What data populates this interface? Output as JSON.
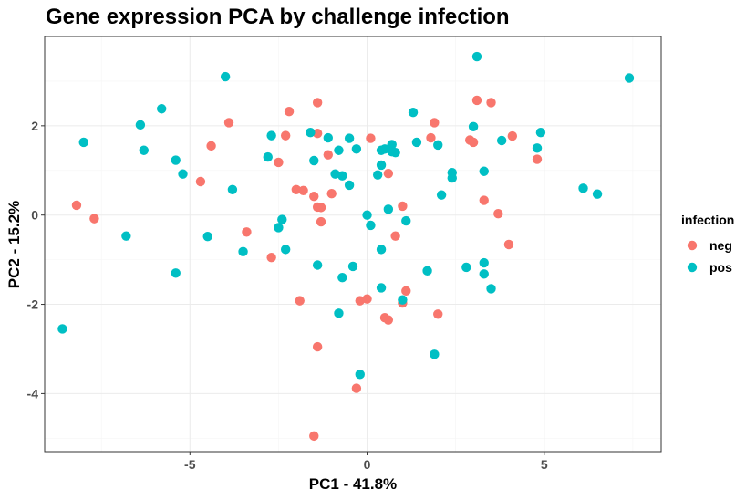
{
  "chart_data": {
    "type": "scatter",
    "title": "Gene expression PCA by challenge infection",
    "xlabel": "PC1 - 41.8%",
    "ylabel": "PC2 - 15.2%",
    "xlim": [
      -9.1,
      8.3
    ],
    "ylim": [
      -5.3,
      4.0
    ],
    "x_ticks": [
      -5,
      0,
      5
    ],
    "x_tick_labels": [
      "-5",
      "0",
      "5"
    ],
    "y_ticks": [
      -4,
      -2,
      0,
      2
    ],
    "y_tick_labels": [
      "-4",
      "-2",
      "0",
      "2"
    ],
    "grid": true,
    "legend": {
      "title": "infection",
      "position": "right"
    },
    "series": [
      {
        "name": "neg",
        "color": "#F8766D",
        "points": [
          [
            -8.2,
            0.22
          ],
          [
            -7.7,
            -0.08
          ],
          [
            -4.7,
            0.75
          ],
          [
            -4.4,
            1.55
          ],
          [
            -3.9,
            2.07
          ],
          [
            -3.4,
            -0.38
          ],
          [
            -2.7,
            -0.95
          ],
          [
            -2.5,
            1.18
          ],
          [
            -2.3,
            1.78
          ],
          [
            -2.2,
            2.32
          ],
          [
            -2.0,
            0.57
          ],
          [
            -1.8,
            0.55
          ],
          [
            -1.5,
            0.42
          ],
          [
            -1.4,
            0.18
          ],
          [
            -1.3,
            0.17
          ],
          [
            -1.3,
            -0.15
          ],
          [
            -1.4,
            1.83
          ],
          [
            -1.4,
            2.52
          ],
          [
            -1.1,
            1.35
          ],
          [
            -1.0,
            0.48
          ],
          [
            -1.9,
            -1.92
          ],
          [
            -1.4,
            -2.95
          ],
          [
            -1.5,
            -4.95
          ],
          [
            -0.3,
            -3.88
          ],
          [
            -0.2,
            -1.92
          ],
          [
            0.0,
            -1.88
          ],
          [
            0.1,
            1.72
          ],
          [
            0.6,
            0.93
          ],
          [
            0.8,
            -0.47
          ],
          [
            1.0,
            0.2
          ],
          [
            1.0,
            -1.97
          ],
          [
            1.1,
            -1.7
          ],
          [
            0.5,
            -2.3
          ],
          [
            0.6,
            -2.35
          ],
          [
            1.8,
            1.73
          ],
          [
            1.9,
            2.07
          ],
          [
            2.0,
            -2.22
          ],
          [
            2.9,
            1.68
          ],
          [
            3.0,
            1.63
          ],
          [
            3.1,
            2.57
          ],
          [
            3.3,
            0.33
          ],
          [
            3.5,
            2.52
          ],
          [
            3.7,
            0.03
          ],
          [
            4.0,
            -0.66
          ],
          [
            4.1,
            1.77
          ],
          [
            4.8,
            1.25
          ]
        ]
      },
      {
        "name": "pos",
        "color": "#00BFC4",
        "points": [
          [
            -8.6,
            -2.55
          ],
          [
            -8.0,
            1.63
          ],
          [
            -6.8,
            -0.47
          ],
          [
            -6.4,
            2.02
          ],
          [
            -6.3,
            1.45
          ],
          [
            -5.8,
            2.38
          ],
          [
            -5.4,
            1.23
          ],
          [
            -5.4,
            -1.3
          ],
          [
            -5.2,
            0.92
          ],
          [
            -4.5,
            -0.48
          ],
          [
            -4.0,
            3.1
          ],
          [
            -3.8,
            0.57
          ],
          [
            -3.5,
            -0.82
          ],
          [
            -2.8,
            1.3
          ],
          [
            -2.7,
            1.78
          ],
          [
            -2.5,
            -0.28
          ],
          [
            -2.4,
            -0.1
          ],
          [
            -2.3,
            -0.77
          ],
          [
            -1.6,
            1.85
          ],
          [
            -1.5,
            1.22
          ],
          [
            -1.4,
            -1.12
          ],
          [
            -1.1,
            1.73
          ],
          [
            -0.9,
            0.92
          ],
          [
            -0.8,
            1.45
          ],
          [
            -0.7,
            0.88
          ],
          [
            -0.5,
            1.72
          ],
          [
            -0.5,
            0.67
          ],
          [
            -0.3,
            1.48
          ],
          [
            -0.8,
            -2.2
          ],
          [
            -0.7,
            -1.4
          ],
          [
            -0.4,
            -1.15
          ],
          [
            -0.2,
            -3.57
          ],
          [
            0.0,
            0.0
          ],
          [
            0.1,
            -0.23
          ],
          [
            0.3,
            0.9
          ],
          [
            0.4,
            1.12
          ],
          [
            0.4,
            1.45
          ],
          [
            0.5,
            1.48
          ],
          [
            0.6,
            0.13
          ],
          [
            0.7,
            1.58
          ],
          [
            0.7,
            1.42
          ],
          [
            0.8,
            1.4
          ],
          [
            0.4,
            -0.77
          ],
          [
            0.4,
            -1.63
          ],
          [
            1.0,
            -1.9
          ],
          [
            1.1,
            -0.13
          ],
          [
            1.3,
            2.3
          ],
          [
            1.4,
            1.63
          ],
          [
            1.7,
            -1.25
          ],
          [
            1.9,
            -3.12
          ],
          [
            2.0,
            1.57
          ],
          [
            2.1,
            0.45
          ],
          [
            2.4,
            0.95
          ],
          [
            2.4,
            0.83
          ],
          [
            2.8,
            -1.17
          ],
          [
            3.0,
            1.98
          ],
          [
            3.1,
            3.55
          ],
          [
            3.3,
            0.98
          ],
          [
            3.3,
            -1.07
          ],
          [
            3.3,
            -1.32
          ],
          [
            3.5,
            -1.65
          ],
          [
            3.8,
            1.67
          ],
          [
            4.8,
            1.5
          ],
          [
            4.9,
            1.85
          ],
          [
            6.1,
            0.6
          ],
          [
            6.5,
            0.47
          ],
          [
            7.4,
            3.07
          ]
        ]
      }
    ]
  }
}
